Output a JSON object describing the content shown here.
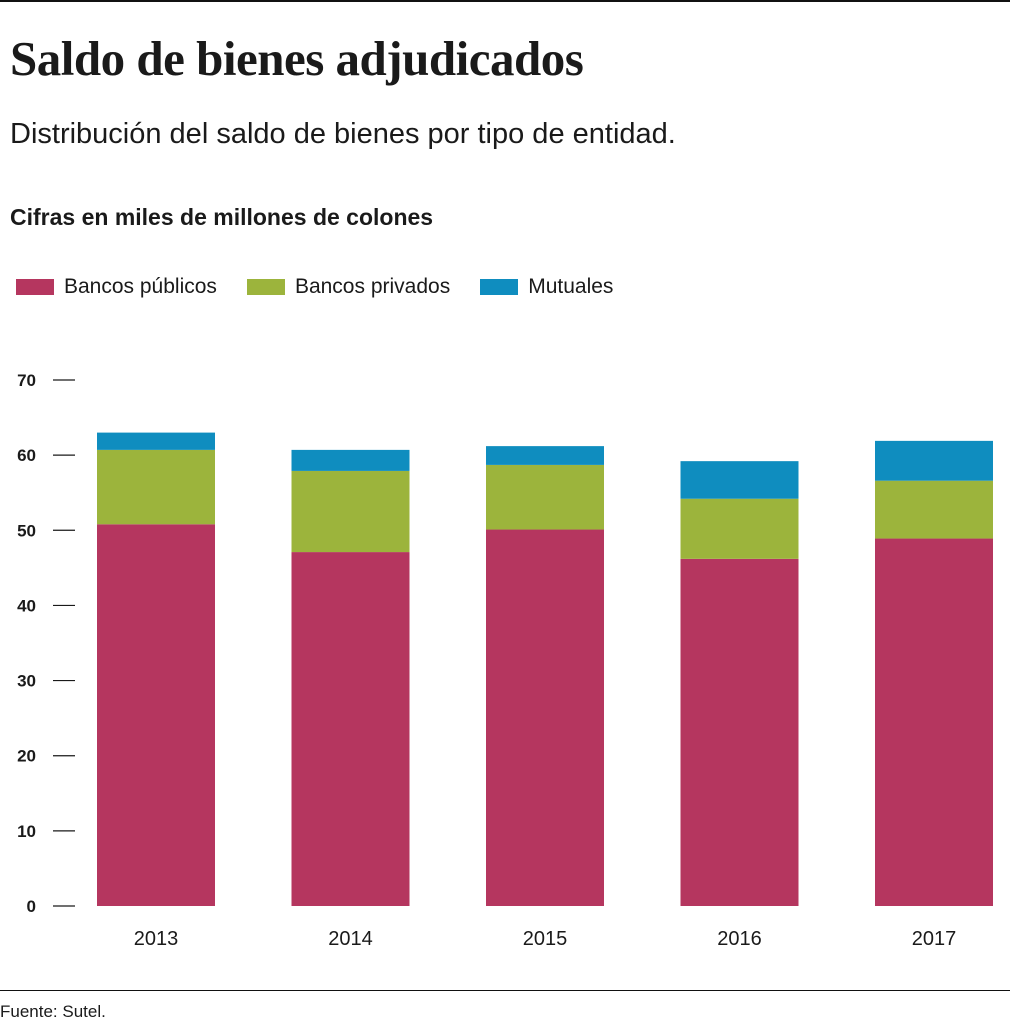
{
  "title": "Saldo de bienes adjudicados",
  "subtitle": "Distribución del saldo de bienes por tipo de entidad.",
  "units_note": "Cifras en miles de millones de colones",
  "source": "Fuente: Sutel.",
  "legend": [
    {
      "label": "Bancos públicos",
      "color": "#b5365f"
    },
    {
      "label": "Bancos privados",
      "color": "#9cb43c"
    },
    {
      "label": "Mutuales",
      "color": "#0f8dbf"
    }
  ],
  "chart_data": {
    "type": "bar",
    "stacked": true,
    "categories": [
      "2013",
      "2014",
      "2015",
      "2016",
      "2017"
    ],
    "series": [
      {
        "name": "Bancos públicos",
        "color": "#b5365f",
        "values": [
          50.8,
          47.1,
          50.1,
          46.2,
          48.9
        ]
      },
      {
        "name": "Bancos privados",
        "color": "#9cb43c",
        "values": [
          9.9,
          10.8,
          8.6,
          8.0,
          7.7
        ]
      },
      {
        "name": "Mutuales",
        "color": "#0f8dbf",
        "values": [
          2.3,
          2.8,
          2.5,
          5.0,
          5.3
        ]
      }
    ],
    "yticks": [
      "0",
      "10",
      "20",
      "30",
      "40",
      "50",
      "60",
      "70"
    ],
    "ylim": [
      0,
      70
    ],
    "grid": false,
    "legend_position": "top-left"
  }
}
